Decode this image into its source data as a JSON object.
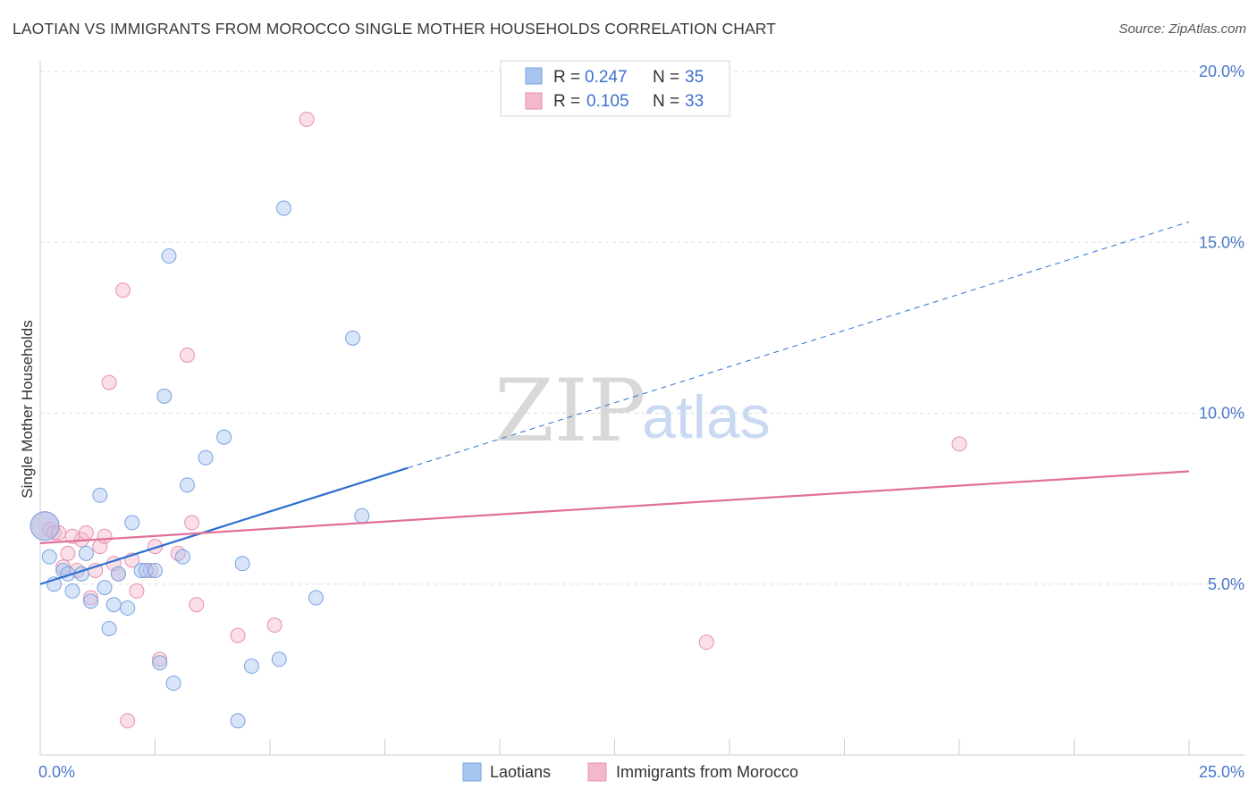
{
  "header": {
    "title": "LAOTIAN VS IMMIGRANTS FROM MOROCCO SINGLE MOTHER HOUSEHOLDS CORRELATION CHART",
    "source": "Source: ZipAtlas.com"
  },
  "watermark": {
    "zip": "ZIP",
    "atlas": "atlas"
  },
  "legend": {
    "rows": [
      {
        "r_label": "R =",
        "r_value": "0.247",
        "n_label": "N =",
        "n_value": "35",
        "color": "#a8c4f0"
      },
      {
        "r_label": "R =",
        "r_value": "0.105",
        "n_label": "N =",
        "n_value": "33",
        "color": "#f4b8cb"
      }
    ]
  },
  "bottom_legend": {
    "items": [
      {
        "label": "Laotians",
        "color": "#a8c4f0"
      },
      {
        "label": "Immigrants from Morocco",
        "color": "#f4b8cb"
      }
    ]
  },
  "colors": {
    "blue_fill": "#a8c4f0",
    "blue_stroke": "#7aa3e0",
    "blue_line": "#2c6fd1",
    "pink_fill": "#f4b8cb",
    "pink_stroke": "#e98fab",
    "pink_line": "#e0709a",
    "grid": "#dddddd",
    "tick_text": "#4a78c8"
  },
  "chart_data": {
    "type": "scatter",
    "title": "LAOTIAN VS IMMIGRANTS FROM MOROCCO SINGLE MOTHER HOUSEHOLDS CORRELATION CHART",
    "xlabel": "",
    "ylabel": "Single Mother Households",
    "xlim": [
      0,
      25
    ],
    "ylim": [
      0,
      20
    ],
    "x_ticks": [
      0,
      25
    ],
    "x_tick_labels": [
      "0.0%",
      "25.0%"
    ],
    "y_ticks": [
      5,
      10,
      15,
      20
    ],
    "y_tick_labels": [
      "5.0%",
      "10.0%",
      "15.0%",
      "20.0%"
    ],
    "grid": true,
    "legend_position": "top-center",
    "series": [
      {
        "name": "Laotians",
        "r": 0.247,
        "n": 35,
        "trend": {
          "x": [
            0,
            8.0
          ],
          "y": [
            5.0,
            8.4
          ],
          "dashed_to": [
            25,
            15.6
          ]
        },
        "points": [
          [
            0.1,
            6.7
          ],
          [
            0.2,
            5.8
          ],
          [
            0.3,
            5.0
          ],
          [
            0.5,
            5.4
          ],
          [
            0.6,
            5.3
          ],
          [
            0.7,
            4.8
          ],
          [
            0.9,
            5.3
          ],
          [
            1.0,
            5.9
          ],
          [
            1.1,
            4.5
          ],
          [
            1.3,
            7.6
          ],
          [
            1.4,
            4.9
          ],
          [
            1.6,
            4.4
          ],
          [
            1.7,
            5.3
          ],
          [
            1.9,
            4.3
          ],
          [
            2.0,
            6.8
          ],
          [
            2.2,
            5.4
          ],
          [
            2.3,
            5.4
          ],
          [
            2.5,
            5.4
          ],
          [
            2.6,
            2.7
          ],
          [
            2.7,
            10.5
          ],
          [
            2.8,
            14.6
          ],
          [
            2.9,
            2.1
          ],
          [
            3.1,
            5.8
          ],
          [
            3.2,
            7.9
          ],
          [
            3.6,
            8.7
          ],
          [
            4.0,
            9.3
          ],
          [
            4.3,
            1.0
          ],
          [
            4.4,
            5.6
          ],
          [
            4.6,
            2.6
          ],
          [
            5.2,
            2.8
          ],
          [
            5.3,
            16.0
          ],
          [
            6.0,
            4.6
          ],
          [
            6.8,
            12.2
          ],
          [
            7.0,
            7.0
          ],
          [
            1.5,
            3.7
          ]
        ]
      },
      {
        "name": "Immigrants from Morocco",
        "r": 0.105,
        "n": 33,
        "trend": {
          "x": [
            0,
            25
          ],
          "y": [
            6.2,
            8.3
          ]
        },
        "points": [
          [
            0.1,
            6.7
          ],
          [
            0.2,
            6.6
          ],
          [
            0.3,
            6.5
          ],
          [
            0.4,
            6.5
          ],
          [
            0.5,
            5.5
          ],
          [
            0.6,
            5.9
          ],
          [
            0.8,
            5.4
          ],
          [
            0.9,
            6.3
          ],
          [
            1.0,
            6.5
          ],
          [
            1.1,
            4.6
          ],
          [
            1.2,
            5.4
          ],
          [
            1.3,
            6.1
          ],
          [
            1.4,
            6.4
          ],
          [
            1.5,
            10.9
          ],
          [
            1.6,
            5.6
          ],
          [
            1.7,
            5.3
          ],
          [
            1.8,
            13.6
          ],
          [
            1.9,
            1.0
          ],
          [
            2.0,
            5.7
          ],
          [
            2.1,
            4.8
          ],
          [
            2.4,
            5.4
          ],
          [
            2.5,
            6.1
          ],
          [
            2.6,
            2.8
          ],
          [
            3.0,
            5.9
          ],
          [
            3.2,
            11.7
          ],
          [
            3.3,
            6.8
          ],
          [
            3.4,
            4.4
          ],
          [
            4.3,
            3.5
          ],
          [
            5.1,
            3.8
          ],
          [
            5.8,
            18.6
          ],
          [
            14.5,
            3.3
          ],
          [
            20.0,
            9.1
          ],
          [
            0.7,
            6.4
          ]
        ]
      }
    ]
  }
}
